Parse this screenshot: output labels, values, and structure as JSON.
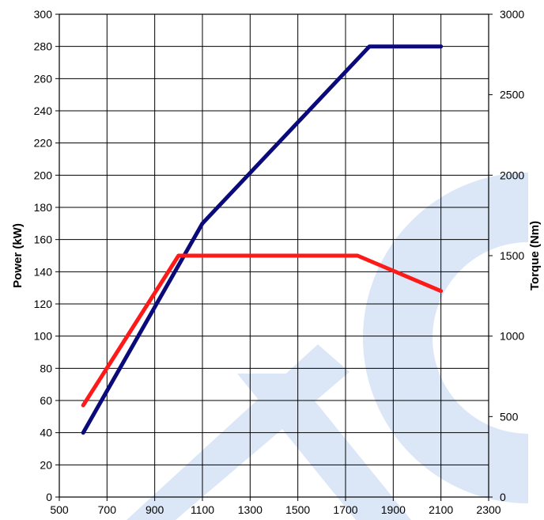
{
  "chart_data": {
    "type": "line",
    "title": "",
    "xlabel": "",
    "ylabel": "Power (kW)",
    "y2label": "Torque (Nm)",
    "xlim": [
      500,
      2300
    ],
    "ylim": [
      0,
      300
    ],
    "y2lim": [
      0,
      3000
    ],
    "x_ticks": [
      "500",
      "700",
      "900",
      "1100",
      "1300",
      "1500",
      "1700",
      "1900",
      "2100",
      "2300"
    ],
    "y_ticks": [
      "0",
      "20",
      "40",
      "60",
      "80",
      "100",
      "120",
      "140",
      "160",
      "180",
      "200",
      "220",
      "240",
      "260",
      "280",
      "300"
    ],
    "y2_ticks": [
      "0",
      "500",
      "1000",
      "1500",
      "2000",
      "2500",
      "3000"
    ],
    "grid": true,
    "series": [
      {
        "axis": "left",
        "color": "#0a0a7a",
        "x": [
          600,
          1100,
          1800,
          2100
        ],
        "y": [
          40,
          170,
          280,
          280
        ]
      },
      {
        "axis": "right",
        "color": "#ff1a1a",
        "x": [
          600,
          1000,
          1750,
          2100
        ],
        "y": [
          570,
          1500,
          1500,
          1280
        ]
      }
    ]
  },
  "watermark": {
    "color": "#dbe7f7"
  }
}
